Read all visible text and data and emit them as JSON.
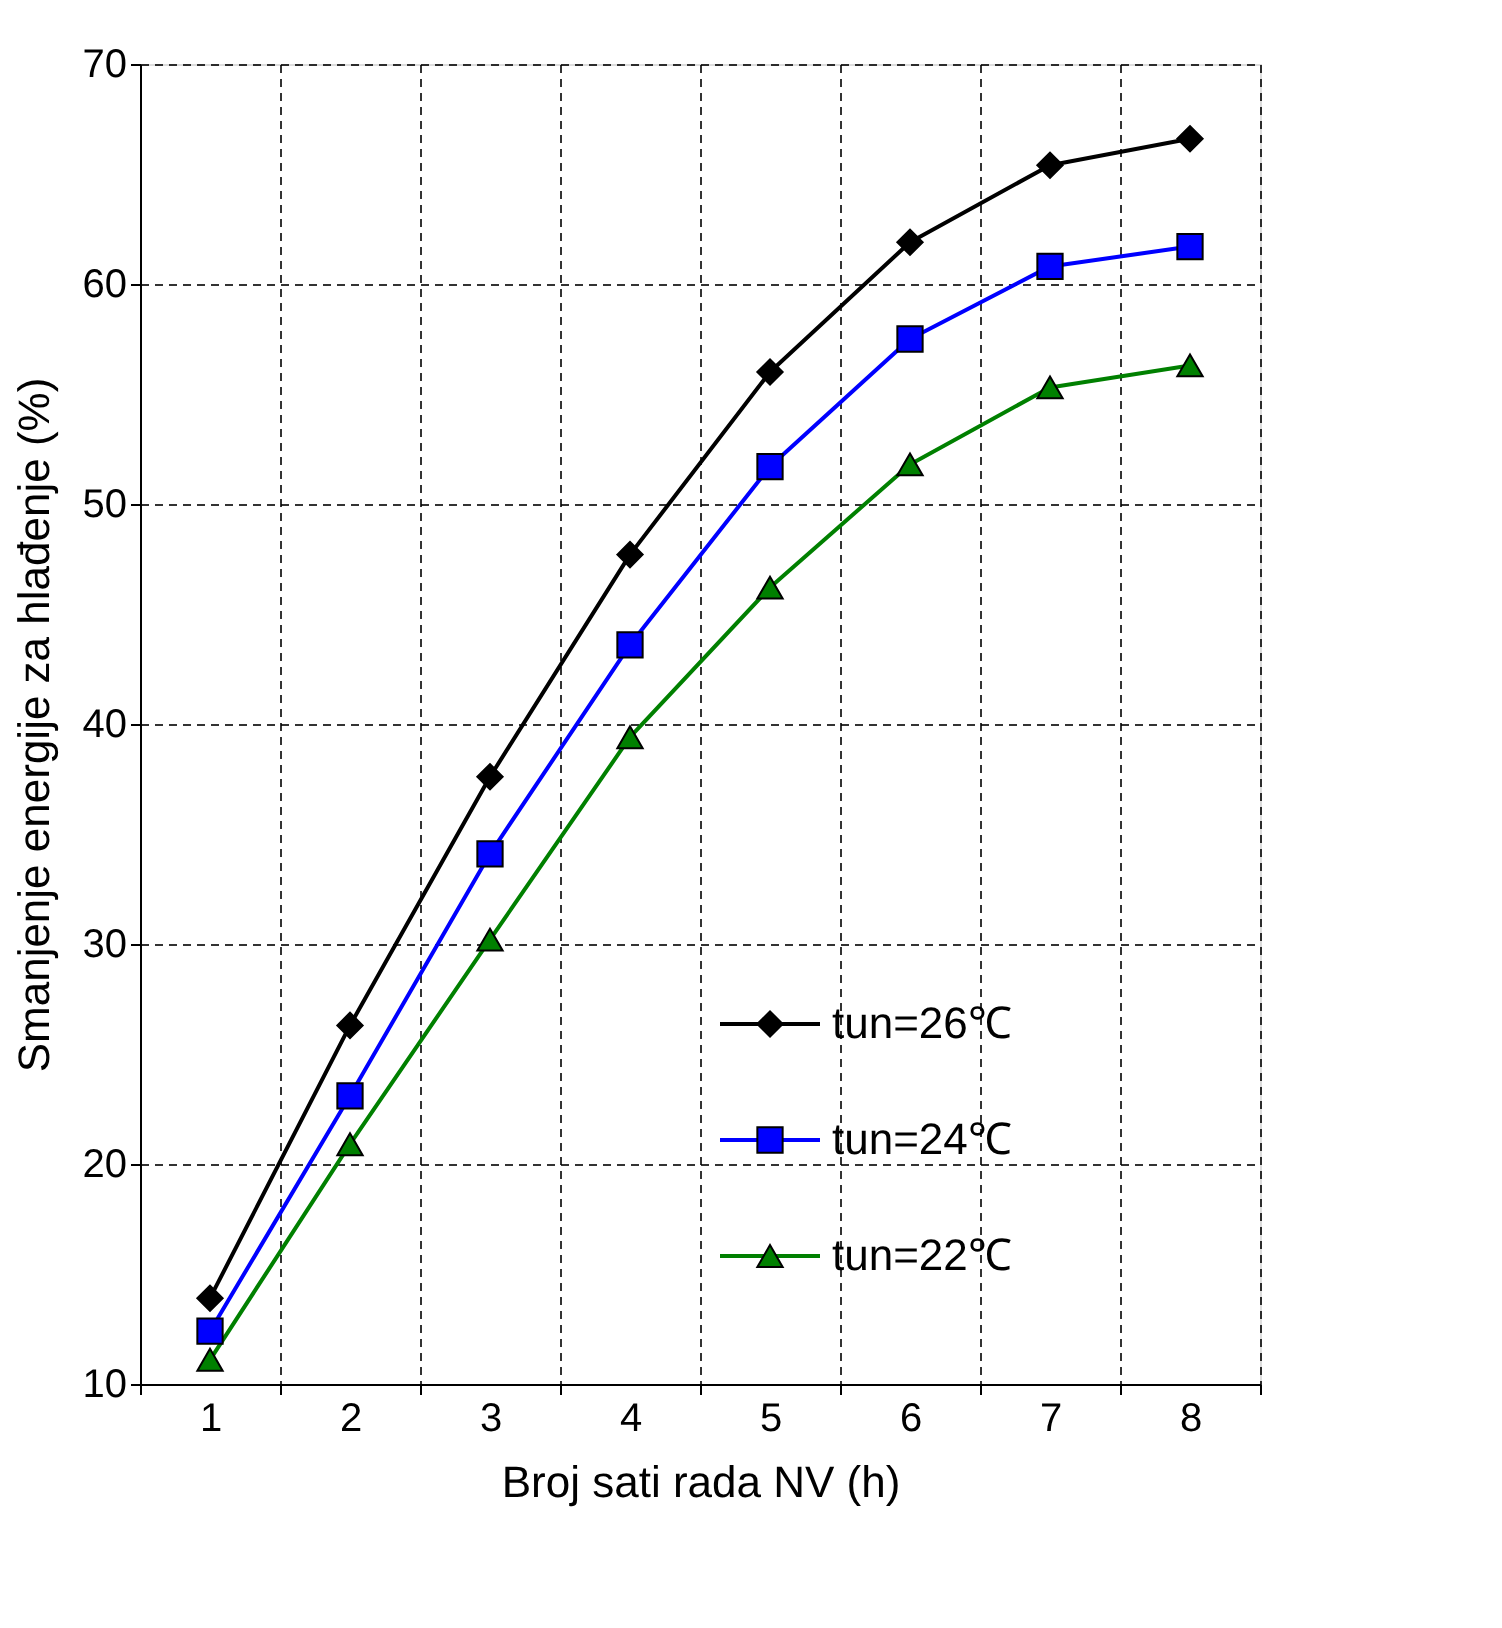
{
  "chart_data": {
    "type": "line",
    "xlabel": "Broj sati rada NV (h)",
    "ylabel": "Smanjenje energije za hlađenje (%)",
    "categories": [
      "1",
      "2",
      "3",
      "4",
      "5",
      "6",
      "7",
      "8"
    ],
    "series": [
      {
        "name": "tun=26℃",
        "color": "#000000",
        "marker": "diamond",
        "values": [
          13.9,
          26.3,
          37.6,
          47.7,
          56.0,
          61.9,
          65.4,
          66.6
        ]
      },
      {
        "name": "tun=24℃",
        "color": "#0000ff",
        "marker": "square",
        "values": [
          12.4,
          23.1,
          34.1,
          43.6,
          51.7,
          57.5,
          60.8,
          61.7
        ]
      },
      {
        "name": "tun=22℃",
        "color": "#008000",
        "marker": "triangle",
        "values": [
          11.1,
          20.9,
          30.2,
          39.4,
          46.2,
          51.8,
          55.3,
          56.3
        ]
      }
    ],
    "ylim": [
      10,
      70
    ],
    "yticks": [
      10,
      20,
      30,
      40,
      50,
      60,
      70
    ],
    "grid": true,
    "legend": "bottom right"
  }
}
